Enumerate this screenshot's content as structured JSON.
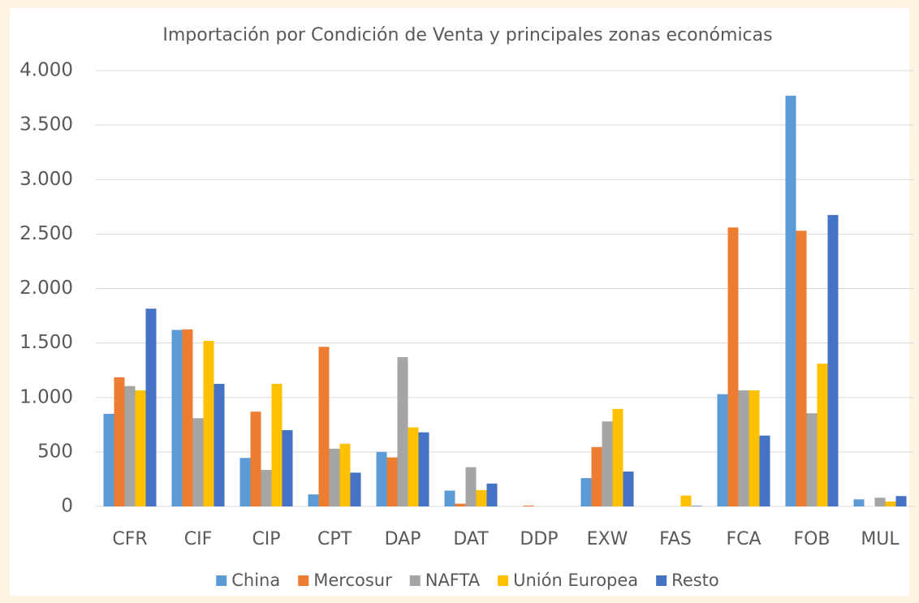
{
  "chart_data": {
    "type": "bar",
    "title": "Importación por Condición de Venta y principales zonas económicas",
    "categories": [
      "CFR",
      "CIF",
      "CIP",
      "CPT",
      "DAP",
      "DAT",
      "DDP",
      "EXW",
      "FAS",
      "FCA",
      "FOB",
      "MUL"
    ],
    "series": [
      {
        "name": "China",
        "color": "#5b9bd5",
        "values": [
          850,
          1620,
          445,
          110,
          500,
          145,
          0,
          260,
          0,
          1030,
          3770,
          65
        ]
      },
      {
        "name": "Mercosur",
        "color": "#ed7d31",
        "values": [
          1185,
          1625,
          870,
          1465,
          450,
          25,
          8,
          545,
          0,
          2560,
          2530,
          0
        ]
      },
      {
        "name": "NAFTA",
        "color": "#a5a5a5",
        "values": [
          1105,
          810,
          335,
          530,
          1370,
          360,
          0,
          780,
          0,
          1065,
          855,
          80
        ]
      },
      {
        "name": "Unión Europea",
        "color": "#ffc000",
        "values": [
          1065,
          1520,
          1125,
          575,
          725,
          150,
          0,
          895,
          100,
          1065,
          1310,
          45
        ]
      },
      {
        "name": "Resto",
        "color": "#4472c4",
        "values": [
          1815,
          1125,
          700,
          310,
          680,
          210,
          0,
          320,
          5,
          650,
          2675,
          95
        ]
      }
    ],
    "ylim": [
      0,
      4000
    ],
    "yticks": [
      0,
      500,
      {
        "value": 1000,
        "label": "1.000"
      },
      {
        "value": 1500,
        "label": "1.500"
      },
      {
        "value": 2000,
        "label": "2.000"
      },
      {
        "value": 2500,
        "label": "2.500"
      },
      {
        "value": 3000,
        "label": "3.000"
      },
      {
        "value": 3500,
        "label": "3.500"
      },
      {
        "value": 4000,
        "label": "4.000"
      }
    ],
    "grid": true,
    "legend": "bottom"
  }
}
